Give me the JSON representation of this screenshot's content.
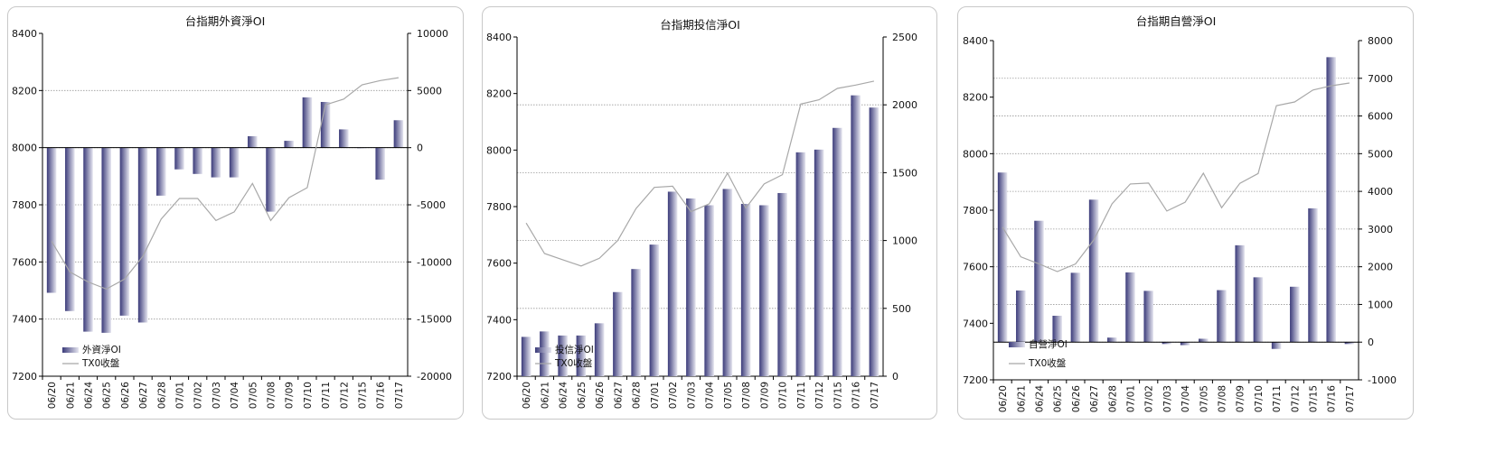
{
  "dates": [
    "06/20",
    "06/21",
    "06/24",
    "06/25",
    "06/26",
    "06/27",
    "06/28",
    "07/01",
    "07/02",
    "07/03",
    "07/04",
    "07/05",
    "07/08",
    "07/09",
    "07/10",
    "07/11",
    "07/12",
    "07/15",
    "07/16",
    "07/17"
  ],
  "colors": {
    "bar_dark": "#3b3b7a",
    "bar_light": "#e6e6f0",
    "line": "#a8a8a8",
    "grid": "#9a9a9a",
    "border": "#c8c8c8"
  },
  "chart_data": [
    {
      "type": "bar",
      "title": "台指期外資淨OI",
      "categories": [
        "06/20",
        "06/21",
        "06/24",
        "06/25",
        "06/26",
        "06/27",
        "06/28",
        "07/01",
        "07/02",
        "07/03",
        "07/04",
        "07/05",
        "07/08",
        "07/09",
        "07/10",
        "07/11",
        "07/12",
        "07/15",
        "07/16",
        "07/17"
      ],
      "left_axis": {
        "ylim": [
          7200,
          8400
        ],
        "ticks": [
          "8400",
          "8200",
          "8000",
          "7800",
          "7600",
          "7400",
          "7200"
        ]
      },
      "right_axis": {
        "ylim": [
          -20000,
          10000
        ],
        "ticks": [
          "10000",
          "5000",
          "0",
          "-5000",
          "-10000",
          "-15000",
          "-20000"
        ]
      },
      "series": [
        {
          "name": "外資淨OI",
          "axis": "right",
          "values": [
            -12700,
            -14300,
            -16100,
            -16200,
            -14700,
            -15300,
            -4200,
            -1900,
            -2300,
            -2600,
            -2600,
            1000,
            -5600,
            600,
            4400,
            4000,
            1600,
            0,
            -2800,
            2400
          ]
        },
        {
          "name": "TX0收盤",
          "axis": "left",
          "type": "line",
          "values": [
            7672,
            7565,
            7530,
            7505,
            7540,
            7620,
            7750,
            7822,
            7822,
            7745,
            7775,
            7875,
            7745,
            7825,
            7860,
            8150,
            8170,
            8220,
            8235,
            8245
          ]
        }
      ],
      "legend": "bottom-left",
      "grid": true
    },
    {
      "type": "bar",
      "title": "台指期投信淨OI",
      "categories": [
        "06/20",
        "06/21",
        "06/24",
        "06/25",
        "06/26",
        "06/27",
        "06/28",
        "07/01",
        "07/02",
        "07/03",
        "07/04",
        "07/05",
        "07/08",
        "07/09",
        "07/10",
        "07/11",
        "07/12",
        "07/15",
        "07/16",
        "07/17"
      ],
      "left_axis": {
        "ylim": [
          7200,
          8400
        ],
        "ticks": [
          "8400",
          "8200",
          "8000",
          "7800",
          "7600",
          "7400",
          "7200"
        ]
      },
      "right_axis": {
        "ylim": [
          0,
          2500
        ],
        "ticks": [
          "2500",
          "2000",
          "1500",
          "1000",
          "500",
          "0"
        ]
      },
      "series": [
        {
          "name": "投信淨OI",
          "axis": "right",
          "values": [
            290,
            330,
            300,
            300,
            390,
            620,
            790,
            970,
            1360,
            1310,
            1260,
            1380,
            1270,
            1260,
            1350,
            1650,
            1670,
            1830,
            2070,
            1980
          ]
        },
        {
          "name": "TX0收盤",
          "axis": "left",
          "type": "line",
          "values": [
            7742,
            7634,
            7612,
            7590,
            7617,
            7680,
            7793,
            7868,
            7872,
            7782,
            7810,
            7918,
            7795,
            7880,
            7913,
            8163,
            8178,
            8218,
            8230,
            8244
          ]
        }
      ],
      "legend": "bottom-left",
      "grid": true
    },
    {
      "type": "bar",
      "title": "台指期自營淨OI",
      "categories": [
        "06/20",
        "06/21",
        "06/24",
        "06/25",
        "06/26",
        "06/27",
        "06/28",
        "07/01",
        "07/02",
        "07/03",
        "07/04",
        "07/05",
        "07/08",
        "07/09",
        "07/10",
        "07/11",
        "07/12",
        "07/15",
        "07/16",
        "07/17"
      ],
      "left_axis": {
        "ylim": [
          7200,
          8400
        ],
        "ticks": [
          "8400",
          "8200",
          "8000",
          "7800",
          "7600",
          "7400",
          "7200"
        ]
      },
      "right_axis": {
        "ylim": [
          -1000,
          8000
        ],
        "ticks": [
          "8000",
          "7000",
          "6000",
          "5000",
          "4000",
          "3000",
          "2000",
          "1000",
          "0",
          "-1000"
        ]
      },
      "series": [
        {
          "name": "自營淨OI",
          "axis": "right",
          "values": [
            4500,
            1370,
            3220,
            700,
            1840,
            3780,
            120,
            1850,
            1360,
            -50,
            -80,
            90,
            1380,
            2570,
            1720,
            -180,
            1470,
            3550,
            7560,
            -50
          ]
        },
        {
          "name": "TX0收盤",
          "axis": "left",
          "type": "line",
          "values": [
            7740,
            7635,
            7610,
            7583,
            7610,
            7695,
            7823,
            7893,
            7896,
            7797,
            7828,
            7931,
            7809,
            7895,
            7930,
            8170,
            8183,
            8225,
            8240,
            8250
          ]
        }
      ],
      "legend": "bottom-left",
      "grid": true
    }
  ]
}
